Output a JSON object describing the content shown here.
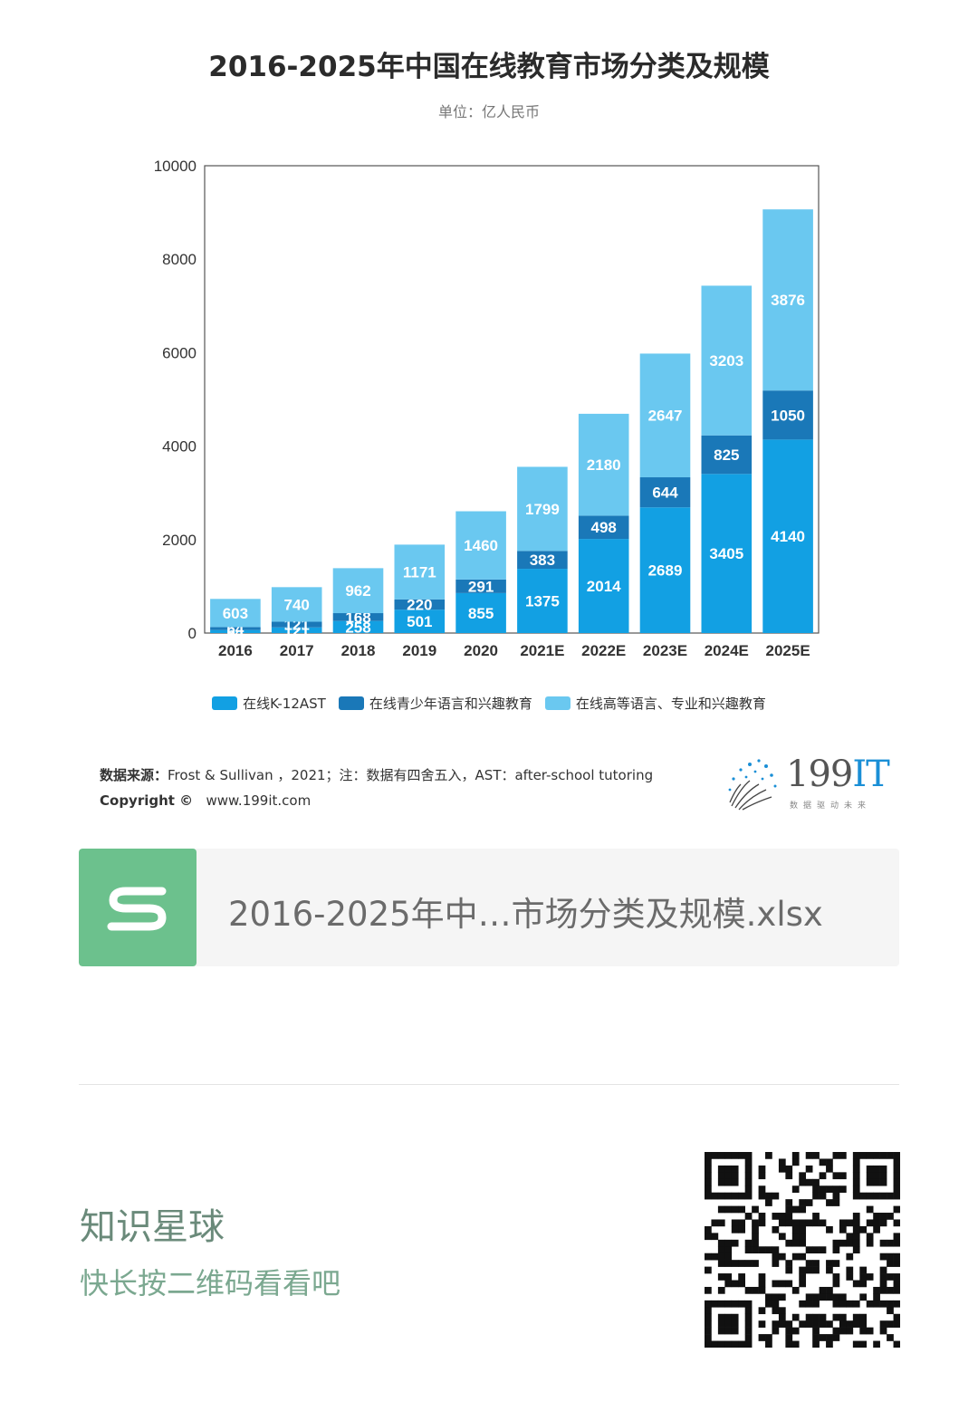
{
  "header": {
    "title": "2016-2025年中国在线教育市场分类及规模",
    "unit": "单位：亿人民币"
  },
  "chart_data": {
    "type": "bar",
    "stacked": true,
    "title": "2016-2025年中国在线教育市场分类及规模",
    "subtitle": "单位：亿人民币",
    "categories": [
      "2016",
      "2017",
      "2018",
      "2019",
      "2020",
      "2021E",
      "2022E",
      "2023E",
      "2024E",
      "2025E"
    ],
    "series": [
      {
        "name": "在线K-12AST",
        "color": "#12a0e3",
        "values": [
          64,
          121,
          258,
          501,
          855,
          1375,
          2014,
          2689,
          3405,
          4140
        ],
        "labels": [
          "64",
          "121",
          "258",
          "501",
          "855",
          "1375",
          "2014",
          "2689",
          "3405",
          "4140"
        ]
      },
      {
        "name": "在线青少年语言和兴趣教育",
        "color": "#1a78b8",
        "values": [
          64,
          121,
          168,
          220,
          291,
          383,
          498,
          644,
          825,
          1050
        ],
        "labels": [
          "64",
          "121",
          "168",
          "220",
          "291",
          "383",
          "498",
          "644",
          "825",
          "1050"
        ]
      },
      {
        "name": "在线高等语言、专业和兴趣教育",
        "color": "#6ac8f0",
        "values": [
          603,
          740,
          962,
          1171,
          1460,
          1799,
          2180,
          2647,
          3203,
          3876
        ],
        "labels": [
          "603",
          "740",
          "962",
          "1171",
          "1460",
          "1799",
          "2180",
          "2647",
          "3203",
          "3876"
        ]
      }
    ],
    "ylim": [
      0,
      10000
    ],
    "yticks": [
      0,
      2000,
      4000,
      6000,
      8000,
      10000
    ],
    "grid": false,
    "legend": "bottom"
  },
  "legend": [
    {
      "label": "在线K-12AST",
      "color": "#12a0e3"
    },
    {
      "label": "在线青少年语言和兴趣教育",
      "color": "#1a78b8"
    },
    {
      "label": "在线高等语言、专业和兴趣教育",
      "color": "#6ac8f0"
    }
  ],
  "footer": {
    "source_label": "数据来源：",
    "source_text": "Frost & Sullivan ，2021；注：数据有四舍五入，AST：after-school tutoring",
    "copyright_label": "Copyright ©",
    "copyright_url": "www.199it.com",
    "brand_number": "199",
    "brand_suffix": "IT",
    "brand_tagline": "数据驱动未来"
  },
  "file_card": {
    "icon": "spreadsheet-s-icon",
    "name": "2016-2025年中…市场分类及规模.xlsx"
  },
  "promo": {
    "title": "知识星球",
    "subtitle": "快长按二维码看看吧"
  }
}
